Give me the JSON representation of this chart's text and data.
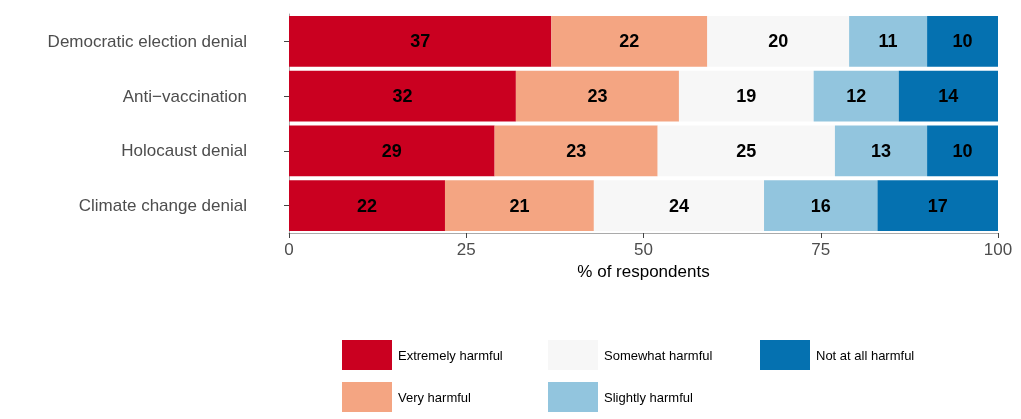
{
  "chart_data": {
    "type": "bar",
    "orientation": "horizontal",
    "stacked": true,
    "xlabel": "% of respondents",
    "categories": [
      "Democratic election denial",
      "Anti−vaccination",
      "Holocaust denial",
      "Climate change denial"
    ],
    "series": [
      {
        "name": "Extremely harmful",
        "color": "#ca0020",
        "values": [
          37,
          32,
          29,
          22
        ]
      },
      {
        "name": "Very harmful",
        "color": "#f4a582",
        "values": [
          22,
          23,
          23,
          21
        ]
      },
      {
        "name": "Somewhat harmful",
        "color": "#f7f7f7",
        "values": [
          20,
          19,
          25,
          24
        ]
      },
      {
        "name": "Slightly harmful",
        "color": "#92c5de",
        "values": [
          11,
          12,
          13,
          16
        ]
      },
      {
        "name": "Not at all harmful",
        "color": "#0571b0",
        "values": [
          10,
          14,
          10,
          17
        ]
      }
    ],
    "xlim": [
      0,
      100
    ],
    "xticks": [
      0,
      25,
      50,
      75,
      100
    ],
    "data_labels": true,
    "grid": false,
    "legend": "bottom"
  }
}
